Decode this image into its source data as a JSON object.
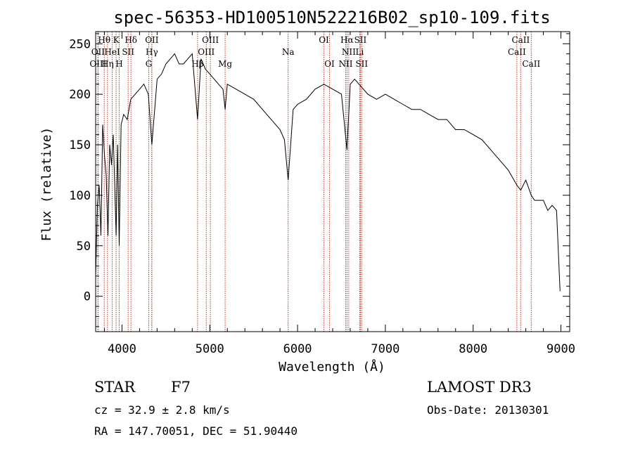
{
  "chart_data": {
    "type": "line",
    "title": "spec-56353-HD100510N522216B02_sp10-109.fits",
    "xlabel": "Wavelength (Å)",
    "ylabel": "Flux (relative)",
    "xlim": [
      3700,
      9100
    ],
    "ylim": [
      -35,
      262
    ],
    "x_ticks": [
      4000,
      5000,
      6000,
      7000,
      8000,
      9000
    ],
    "x_tick_labels": [
      "4000",
      "5000",
      "6000",
      "7000",
      "8000",
      "9000"
    ],
    "y_ticks": [
      0,
      50,
      100,
      150,
      200,
      250
    ],
    "y_tick_labels": [
      "0",
      "50",
      "100",
      "150",
      "200",
      "250"
    ],
    "series": [
      {
        "name": "flux",
        "x": [
          3700,
          3720,
          3740,
          3760,
          3780,
          3800,
          3820,
          3840,
          3860,
          3880,
          3900,
          3920,
          3933,
          3950,
          3968,
          3990,
          4020,
          4060,
          4100,
          4150,
          4200,
          4250,
          4300,
          4340,
          4400,
          4450,
          4500,
          4550,
          4600,
          4650,
          4700,
          4750,
          4800,
          4861,
          4900,
          4950,
          5000,
          5050,
          5100,
          5150,
          5175,
          5200,
          5300,
          5400,
          5500,
          5600,
          5700,
          5800,
          5850,
          5893,
          5950,
          6000,
          6100,
          6200,
          6300,
          6400,
          6500,
          6563,
          6600,
          6650,
          6700,
          6750,
          6800,
          6900,
          7000,
          7100,
          7200,
          7300,
          7400,
          7500,
          7600,
          7700,
          7800,
          7900,
          8000,
          8100,
          8200,
          8300,
          8400,
          8498,
          8542,
          8600,
          8662,
          8700,
          8800,
          8850,
          8900,
          8950,
          8990
        ],
        "y": [
          20,
          90,
          110,
          60,
          170,
          140,
          120,
          60,
          150,
          130,
          160,
          100,
          60,
          150,
          50,
          170,
          180,
          175,
          195,
          200,
          205,
          210,
          200,
          150,
          215,
          220,
          230,
          235,
          240,
          230,
          230,
          235,
          240,
          175,
          235,
          225,
          220,
          215,
          210,
          205,
          185,
          210,
          205,
          200,
          195,
          185,
          175,
          165,
          155,
          115,
          185,
          190,
          195,
          205,
          210,
          205,
          200,
          145,
          210,
          215,
          210,
          205,
          200,
          195,
          200,
          195,
          190,
          185,
          185,
          180,
          175,
          175,
          165,
          165,
          160,
          155,
          145,
          135,
          125,
          110,
          105,
          115,
          100,
          95,
          95,
          85,
          90,
          85,
          5
        ]
      }
    ],
    "spectral_lines": [
      {
        "name": "Hθ",
        "x": 3798,
        "row": 0
      },
      {
        "name": "K",
        "x": 3933,
        "row": 0
      },
      {
        "name": "Hδ",
        "x": 4102,
        "row": 0
      },
      {
        "name": "OII",
        "x": 4340,
        "row": 0
      },
      {
        "name": "OIII",
        "x": 5007,
        "row": 0
      },
      {
        "name": "OI",
        "x": 6300,
        "row": 0
      },
      {
        "name": "Hα",
        "x": 6563,
        "row": 0
      },
      {
        "name": "SII",
        "x": 6716,
        "row": 0
      },
      {
        "name": "CaII",
        "x": 8542,
        "row": 0
      },
      {
        "name": "OII",
        "x": 3727,
        "row": 1
      },
      {
        "name": "HeI",
        "x": 3889,
        "row": 1
      },
      {
        "name": "SII",
        "x": 4070,
        "row": 1
      },
      {
        "name": "Hγ",
        "x": 4340,
        "row": 1
      },
      {
        "name": "OIII",
        "x": 4960,
        "row": 1
      },
      {
        "name": "Na",
        "x": 5893,
        "row": 1
      },
      {
        "name": "NII",
        "x": 6583,
        "row": 1
      },
      {
        "name": "Li",
        "x": 6708,
        "row": 1
      },
      {
        "name": "CaII",
        "x": 8498,
        "row": 1
      },
      {
        "name": "OIII",
        "x": 3727,
        "row": 2
      },
      {
        "name": "Hη",
        "x": 3835,
        "row": 2
      },
      {
        "name": "H",
        "x": 3968,
        "row": 2
      },
      {
        "name": "G",
        "x": 4305,
        "row": 2
      },
      {
        "name": "Hβ",
        "x": 4861,
        "row": 2
      },
      {
        "name": "Mg",
        "x": 5175,
        "row": 2
      },
      {
        "name": "OI",
        "x": 6364,
        "row": 2
      },
      {
        "name": "NII",
        "x": 6548,
        "row": 2
      },
      {
        "name": "SII",
        "x": 6731,
        "row": 2
      },
      {
        "name": "CaII",
        "x": 8662,
        "row": 2
      }
    ],
    "line_color": "#000000",
    "marker_color": "#c0392b"
  },
  "info": {
    "object_type": "STAR",
    "subclass": "F7",
    "survey": "LAMOST DR3",
    "redshift": "cz = 32.9 ± 2.8 km/s",
    "obs_date": "Obs-Date: 20130301",
    "coords": "RA = 147.70051, DEC =  51.90440"
  }
}
